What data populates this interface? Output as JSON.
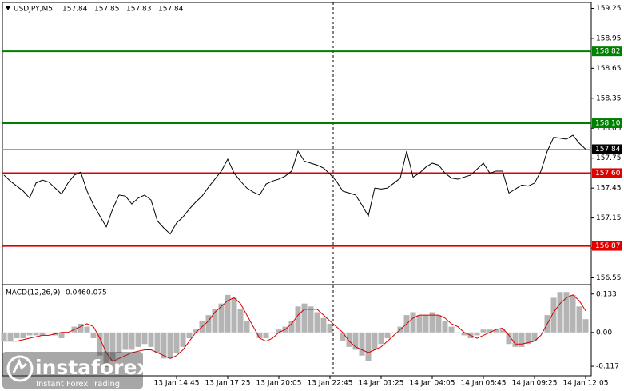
{
  "chart_data": [
    {
      "type": "line",
      "title": "USDJPY,M5",
      "ohlc": [
        157.84,
        157.85,
        157.83,
        157.84
      ],
      "color": "#000000",
      "categories": [
        null,
        null,
        null,
        null,
        null,
        null,
        null,
        null,
        null,
        null,
        null,
        null,
        null,
        null,
        null,
        null,
        null,
        null,
        null,
        null,
        null,
        null,
        null,
        null,
        null,
        null,
        null,
        "13 Jan 14:45",
        null,
        null,
        null,
        null,
        null,
        null,
        null,
        "13 Jan 17:25",
        null,
        null,
        null,
        null,
        null,
        null,
        null,
        "13 Jan 20:05",
        null,
        null,
        null,
        null,
        null,
        null,
        null,
        "13 Jan 22:45",
        null,
        null,
        null,
        null,
        null,
        null,
        null,
        "14 Jan 01:25",
        null,
        null,
        null,
        null,
        null,
        null,
        null,
        "14 Jan 04:05",
        null,
        null,
        null,
        null,
        null,
        null,
        null,
        "14 Jan 06:45",
        null,
        null,
        null,
        null,
        null,
        null,
        null,
        "14 Jan 09:25",
        null,
        null,
        null,
        null,
        null,
        null,
        null,
        "14 Jan 12:05"
      ],
      "values": [
        157.58,
        157.52,
        157.47,
        157.42,
        157.35,
        157.5,
        157.53,
        157.51,
        157.45,
        157.39,
        157.5,
        157.58,
        157.61,
        157.42,
        157.28,
        157.17,
        157.06,
        157.24,
        157.38,
        157.37,
        157.29,
        157.35,
        157.38,
        157.33,
        157.12,
        157.05,
        156.99,
        157.1,
        157.16,
        157.24,
        157.31,
        157.37,
        157.46,
        157.54,
        157.62,
        157.74,
        157.6,
        157.52,
        157.45,
        157.41,
        157.38,
        157.49,
        157.52,
        157.54,
        157.57,
        157.62,
        157.82,
        157.72,
        157.7,
        157.68,
        157.65,
        157.59,
        157.52,
        157.42,
        157.4,
        157.38,
        157.28,
        157.17,
        157.45,
        157.44,
        157.45,
        157.5,
        157.55,
        157.82,
        157.56,
        157.6,
        157.66,
        157.7,
        157.68,
        157.6,
        157.55,
        157.54,
        157.56,
        157.58,
        157.64,
        157.7,
        157.6,
        157.62,
        157.62,
        157.4,
        157.44,
        157.48,
        157.47,
        157.5,
        157.62,
        157.82,
        157.96,
        157.95,
        157.94,
        157.98,
        157.9,
        157.84
      ],
      "ylim": [
        156.49,
        159.31
      ],
      "yticks": [
        159.25,
        158.95,
        158.65,
        158.35,
        158.05,
        157.75,
        157.45,
        157.15,
        156.85,
        156.55
      ],
      "levels": [
        {
          "value": 158.82,
          "color": "#008000"
        },
        {
          "value": 158.1,
          "label": "158.10",
          "color": "#008000"
        },
        {
          "value": 157.6,
          "label": "157.60",
          "color": "#e00000"
        },
        {
          "value": 156.87,
          "color": "#e00000"
        },
        {
          "value": 157.84,
          "color": "#000000"
        }
      ]
    },
    {
      "type": "macd",
      "title": "MACD(12,26,9)",
      "histogram": {
        "color": "#b4b4b4",
        "values": [
          -0.03,
          -0.03,
          -0.02,
          -0.02,
          -0.01,
          -0.01,
          -0.01,
          0.0,
          -0.01,
          -0.02,
          0.0,
          0.02,
          0.03,
          0.02,
          -0.02,
          -0.08,
          -0.12,
          -0.1,
          -0.07,
          -0.06,
          -0.06,
          -0.05,
          -0.04,
          -0.05,
          -0.07,
          -0.09,
          -0.09,
          -0.07,
          -0.05,
          -0.02,
          0.01,
          0.04,
          0.06,
          0.08,
          0.1,
          0.13,
          0.12,
          0.08,
          0.04,
          0.0,
          -0.02,
          -0.02,
          0.0,
          0.01,
          0.02,
          0.04,
          0.09,
          0.1,
          0.09,
          0.07,
          0.05,
          0.03,
          0.0,
          -0.03,
          -0.05,
          -0.06,
          -0.08,
          -0.1,
          -0.06,
          -0.04,
          -0.02,
          0.0,
          0.02,
          0.06,
          0.07,
          0.06,
          0.06,
          0.07,
          0.06,
          0.04,
          0.02,
          0.0,
          -0.01,
          -0.02,
          -0.01,
          0.01,
          0.01,
          0.01,
          0.01,
          -0.04,
          -0.05,
          -0.05,
          -0.04,
          -0.03,
          0.0,
          0.06,
          0.12,
          0.14,
          0.14,
          0.13,
          0.09,
          0.046
        ]
      },
      "signal": {
        "color": "#d40000",
        "values": [
          -0.03,
          -0.03,
          -0.03,
          -0.025,
          -0.02,
          -0.015,
          -0.01,
          -0.01,
          -0.005,
          0.0,
          0.0,
          0.01,
          0.02,
          0.03,
          0.02,
          -0.02,
          -0.07,
          -0.1,
          -0.09,
          -0.08,
          -0.07,
          -0.065,
          -0.06,
          -0.06,
          -0.07,
          -0.08,
          -0.09,
          -0.08,
          -0.06,
          -0.03,
          0.0,
          0.02,
          0.04,
          0.07,
          0.09,
          0.11,
          0.12,
          0.1,
          0.06,
          0.02,
          -0.02,
          -0.03,
          -0.02,
          0.0,
          0.01,
          0.03,
          0.06,
          0.08,
          0.08,
          0.08,
          0.06,
          0.04,
          0.02,
          0.0,
          -0.03,
          -0.05,
          -0.06,
          -0.07,
          -0.06,
          -0.05,
          -0.03,
          -0.01,
          0.01,
          0.03,
          0.05,
          0.06,
          0.06,
          0.06,
          0.06,
          0.05,
          0.03,
          0.02,
          0.0,
          -0.01,
          -0.02,
          -0.01,
          0.0,
          0.01,
          0.015,
          -0.01,
          -0.04,
          -0.04,
          -0.035,
          -0.03,
          -0.01,
          0.03,
          0.07,
          0.1,
          0.12,
          0.13,
          0.11,
          0.075
        ]
      },
      "ylim": [
        -0.15,
        0.16
      ],
      "yticks": [
        0.133,
        {
          "value": 0,
          "label": "0.00"
        },
        -0.117
      ]
    }
  ],
  "watermark": {
    "brand": "instaforex",
    "tagline": "Instant Forex Trading"
  }
}
